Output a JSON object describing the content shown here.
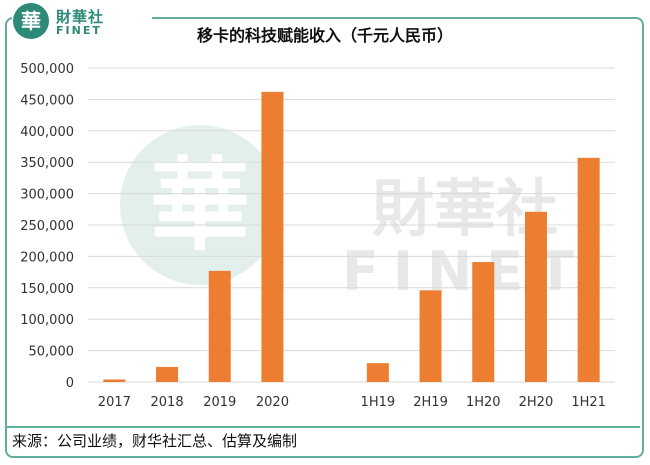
{
  "brand": {
    "logo_char": "華",
    "name_cn": "財華社",
    "name_en": "FINET",
    "watermark_cn": "財華社",
    "watermark_en": "FINET",
    "accent_color": "#2d8a78"
  },
  "source_note": "来源：公司业绩，财华社汇总、估算及编制",
  "chart_data": {
    "type": "bar",
    "title": "移卡的科技赋能收入（千元人民币）",
    "categories": [
      "2017",
      "2018",
      "2019",
      "2020",
      "",
      "1H19",
      "2H19",
      "1H20",
      "2H20",
      "1H21"
    ],
    "values": [
      4000,
      24000,
      177000,
      462000,
      null,
      30000,
      146000,
      191000,
      271000,
      357000
    ],
    "ylim": [
      0,
      500000
    ],
    "yticks": [
      0,
      50000,
      100000,
      150000,
      200000,
      250000,
      300000,
      350000,
      400000,
      450000,
      500000
    ],
    "ytick_labels": [
      "0",
      "50,000",
      "100,000",
      "150,000",
      "200,000",
      "250,000",
      "300,000",
      "350,000",
      "400,000",
      "450,000",
      "500,000"
    ],
    "grid": true,
    "bar_color": "#ed7d31",
    "grid_color": "#d9d9d9",
    "xlabel": "",
    "ylabel": ""
  }
}
